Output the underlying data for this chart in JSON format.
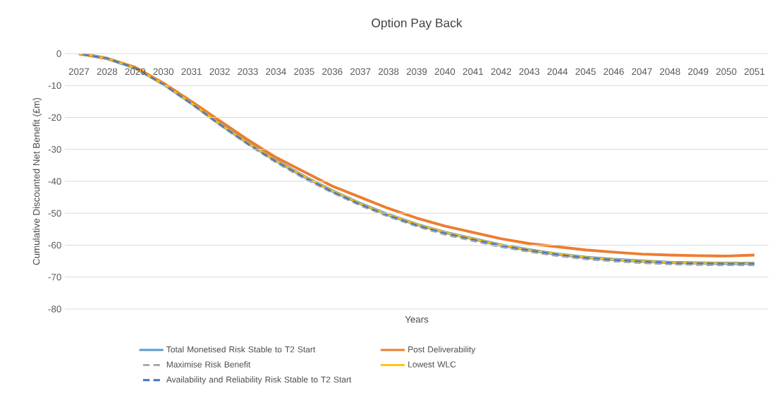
{
  "chart_data": {
    "type": "line",
    "title": "Option Pay Back",
    "xlabel": "Years",
    "ylabel": "Cumulative Discounted Net Benefit (£m)",
    "categories": [
      "2027",
      "2028",
      "2029",
      "2030",
      "2031",
      "2032",
      "2033",
      "2034",
      "2035",
      "2036",
      "2037",
      "2038",
      "2039",
      "2040",
      "2041",
      "2042",
      "2043",
      "2044",
      "2045",
      "2046",
      "2047",
      "2048",
      "2049",
      "2050",
      "2051"
    ],
    "series": [
      {
        "name": "Total Monetised Risk Stable to T2 Start",
        "color": "#5b9bd5",
        "line_style": "solid",
        "values": [
          0,
          -1.5,
          -4.5,
          -9.5,
          -15.5,
          -22,
          -28,
          -33.5,
          -38.5,
          -43,
          -47,
          -50.5,
          -53.5,
          -56,
          -58,
          -60,
          -61.5,
          -62.8,
          -63.8,
          -64.5,
          -65,
          -65.4,
          -65.6,
          -65.7,
          -65.7
        ]
      },
      {
        "name": "Post Deliverability",
        "color": "#ed7d31",
        "line_style": "solid",
        "values": [
          0,
          -1.5,
          -4.3,
          -9.2,
          -15,
          -21,
          -27,
          -32.5,
          -37,
          -41.5,
          -45,
          -48.5,
          -51.5,
          -54,
          -56,
          -58,
          -59.5,
          -60.5,
          -61.5,
          -62.2,
          -62.8,
          -63.1,
          -63.3,
          -63.4,
          -63.1
        ]
      },
      {
        "name": "Maximise Risk Benefit",
        "color": "#a5a5a5",
        "line_style": "dashed",
        "values": [
          0,
          -1.5,
          -4.6,
          -9.7,
          -15.8,
          -22.3,
          -28.4,
          -34,
          -39,
          -43.5,
          -47.5,
          -51,
          -54,
          -56.6,
          -58.6,
          -60.5,
          -62,
          -63.3,
          -64.3,
          -65,
          -65.5,
          -65.9,
          -66.1,
          -66.2,
          -66.2
        ]
      },
      {
        "name": "Lowest WLC",
        "color": "#ffc000",
        "line_style": "solid",
        "values": [
          0,
          -1.5,
          -4.5,
          -9.5,
          -15.5,
          -22,
          -28,
          -33.5,
          -38.5,
          -43,
          -47,
          -50.5,
          -53.5,
          -56,
          -58,
          -60,
          -61.5,
          -62.8,
          -63.8,
          -64.5,
          -65,
          -65.4,
          -65.6,
          -65.7,
          -65.7
        ]
      },
      {
        "name": "Availability and Reliability Risk Stable to T2 Start",
        "color": "#4472c4",
        "line_style": "dashed",
        "values": [
          0,
          -1.5,
          -4.5,
          -9.6,
          -15.6,
          -22.1,
          -28.2,
          -33.7,
          -38.7,
          -43.2,
          -47.2,
          -50.7,
          -53.7,
          -56.2,
          -58.2,
          -60.1,
          -61.6,
          -62.9,
          -63.9,
          -64.6,
          -65.1,
          -65.5,
          -65.7,
          -65.8,
          -65.8
        ]
      }
    ],
    "ylim": [
      -80,
      0
    ],
    "yticks": [
      -80,
      -70,
      -60,
      -50,
      -40,
      -30,
      -20,
      -10,
      0
    ],
    "grid": "y",
    "legend": "bottom",
    "marker": "none"
  }
}
